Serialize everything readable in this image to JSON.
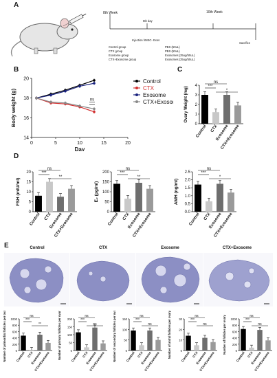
{
  "panels": {
    "a": "A",
    "b": "B",
    "c": "C",
    "d": "D",
    "e": "E"
  },
  "timeline": {
    "week8": "8th Week",
    "day5": "5th day",
    "week10": "10th Week",
    "injection": "Injection hMSC- Exos",
    "sacrifice": "Sacrifice",
    "groups": [
      {
        "name": "Control group",
        "treat": "PBS (50uL)"
      },
      {
        "name": "CTX group",
        "treat": "PBS (50uL)"
      },
      {
        "name": "Exosome group",
        "treat": "Exosomes (25ug/50uL)"
      },
      {
        "name": "CTX+Exosome group",
        "treat": "Exosomes (25ug/50uL)"
      }
    ]
  },
  "colors": {
    "control": "#000000",
    "ctx": "#d32f2f",
    "exosome": "#1a237e",
    "ctxexo": "#888888",
    "bar_control": "#000000",
    "bar_ctx": "#c8c8c8",
    "bar_exo": "#6e6e6e",
    "bar_ctxexo": "#9a9a9a",
    "tissue": "#8c8fc4"
  },
  "legend": [
    "Control",
    "CTX",
    "Exosome",
    "CTX+Exosome"
  ],
  "bar_categories": [
    "Control",
    "CTX",
    "Exosome",
    "CTX+Exosome"
  ],
  "histology_titles": [
    "Control",
    "CTX",
    "Exosome",
    "CTX+Exosome"
  ],
  "stat_labels": {
    "ns": "ns",
    "s1": "*",
    "s2": "**",
    "s3": "***"
  },
  "chart_data": [
    {
      "id": "body-weight",
      "type": "line",
      "xlabel": "Day",
      "ylabel": "Body weight (g)",
      "xlim": [
        0,
        20
      ],
      "ylim": [
        14,
        20
      ],
      "xticks": [
        "0",
        "5",
        "10",
        "15",
        "20"
      ],
      "yticks": [
        "14",
        "16",
        "18",
        "20"
      ],
      "x": [
        1,
        4,
        7,
        10,
        13
      ],
      "series": [
        {
          "name": "Control",
          "values": [
            18.0,
            18.4,
            18.8,
            19.3,
            19.8
          ]
        },
        {
          "name": "CTX",
          "values": [
            18.0,
            17.5,
            17.4,
            17.1,
            16.6
          ]
        },
        {
          "name": "Exosome",
          "values": [
            18.0,
            18.3,
            18.7,
            19.2,
            19.5
          ]
        },
        {
          "name": "CTX+Exosome",
          "values": [
            18.0,
            17.6,
            17.5,
            17.2,
            16.9
          ]
        }
      ]
    },
    {
      "id": "ovary-weight",
      "type": "bar",
      "ylabel": "Ovary Weight (mg)",
      "ylim": [
        0,
        4
      ],
      "yticks": [
        "0",
        "1",
        "2",
        "3",
        "4"
      ],
      "values": [
        3.0,
        1.2,
        3.0,
        1.9
      ]
    },
    {
      "id": "fsh",
      "type": "bar",
      "ylabel": "FSH (mIU/ml)",
      "ylim": [
        0,
        20
      ],
      "yticks": [
        "0",
        "5",
        "10",
        "15",
        "20"
      ],
      "values": [
        8,
        15,
        7.5,
        11.5
      ]
    },
    {
      "id": "e2",
      "type": "bar",
      "ylabel": "E₂ (pg/ml)",
      "ylim": [
        0,
        200
      ],
      "yticks": [
        "0",
        "50",
        "100",
        "150",
        "200"
      ],
      "values": [
        140,
        65,
        145,
        115
      ]
    },
    {
      "id": "amh",
      "type": "bar",
      "ylabel": "AMH (ng/ml)",
      "ylim": [
        0,
        2.5
      ],
      "yticks": [
        "0.0",
        "0.5",
        "1.0",
        "1.5",
        "2.0",
        "2.5"
      ],
      "values": [
        1.7,
        0.65,
        1.75,
        1.2
      ]
    },
    {
      "id": "primordial",
      "type": "bar",
      "ylabel": "Number of primordial follicles per ovary",
      "ylim": [
        0,
        1000
      ],
      "yticks": [
        "0",
        "200",
        "400",
        "600",
        "800",
        "1000"
      ],
      "values": [
        470,
        20,
        500,
        240
      ]
    },
    {
      "id": "primary",
      "type": "bar",
      "ylabel": "Number of primary follicles per ovary",
      "ylim": [
        0,
        200
      ],
      "yticks": [
        "0",
        "50",
        "100",
        "150",
        "200"
      ],
      "values": [
        115,
        20,
        145,
        45
      ]
    },
    {
      "id": "secondary",
      "type": "bar",
      "ylabel": "Number of secondary follicles per ovary",
      "ylim": [
        0,
        150
      ],
      "yticks": [
        "0",
        "50",
        "100",
        "150"
      ],
      "values": [
        95,
        25,
        95,
        50
      ]
    },
    {
      "id": "antral",
      "type": "bar",
      "ylabel": "Number of antral follicles per ovary",
      "ylim": [
        0,
        30
      ],
      "yticks": [
        "0",
        "10",
        "20",
        "30"
      ],
      "values": [
        14,
        5,
        12,
        8
      ]
    },
    {
      "id": "total",
      "type": "bar",
      "ylabel": "Number of follicles per ovary",
      "ylim": [
        0,
        1000
      ],
      "yticks": [
        "0",
        "200",
        "400",
        "600",
        "800",
        "1000"
      ],
      "values": [
        680,
        90,
        650,
        320
      ]
    }
  ]
}
